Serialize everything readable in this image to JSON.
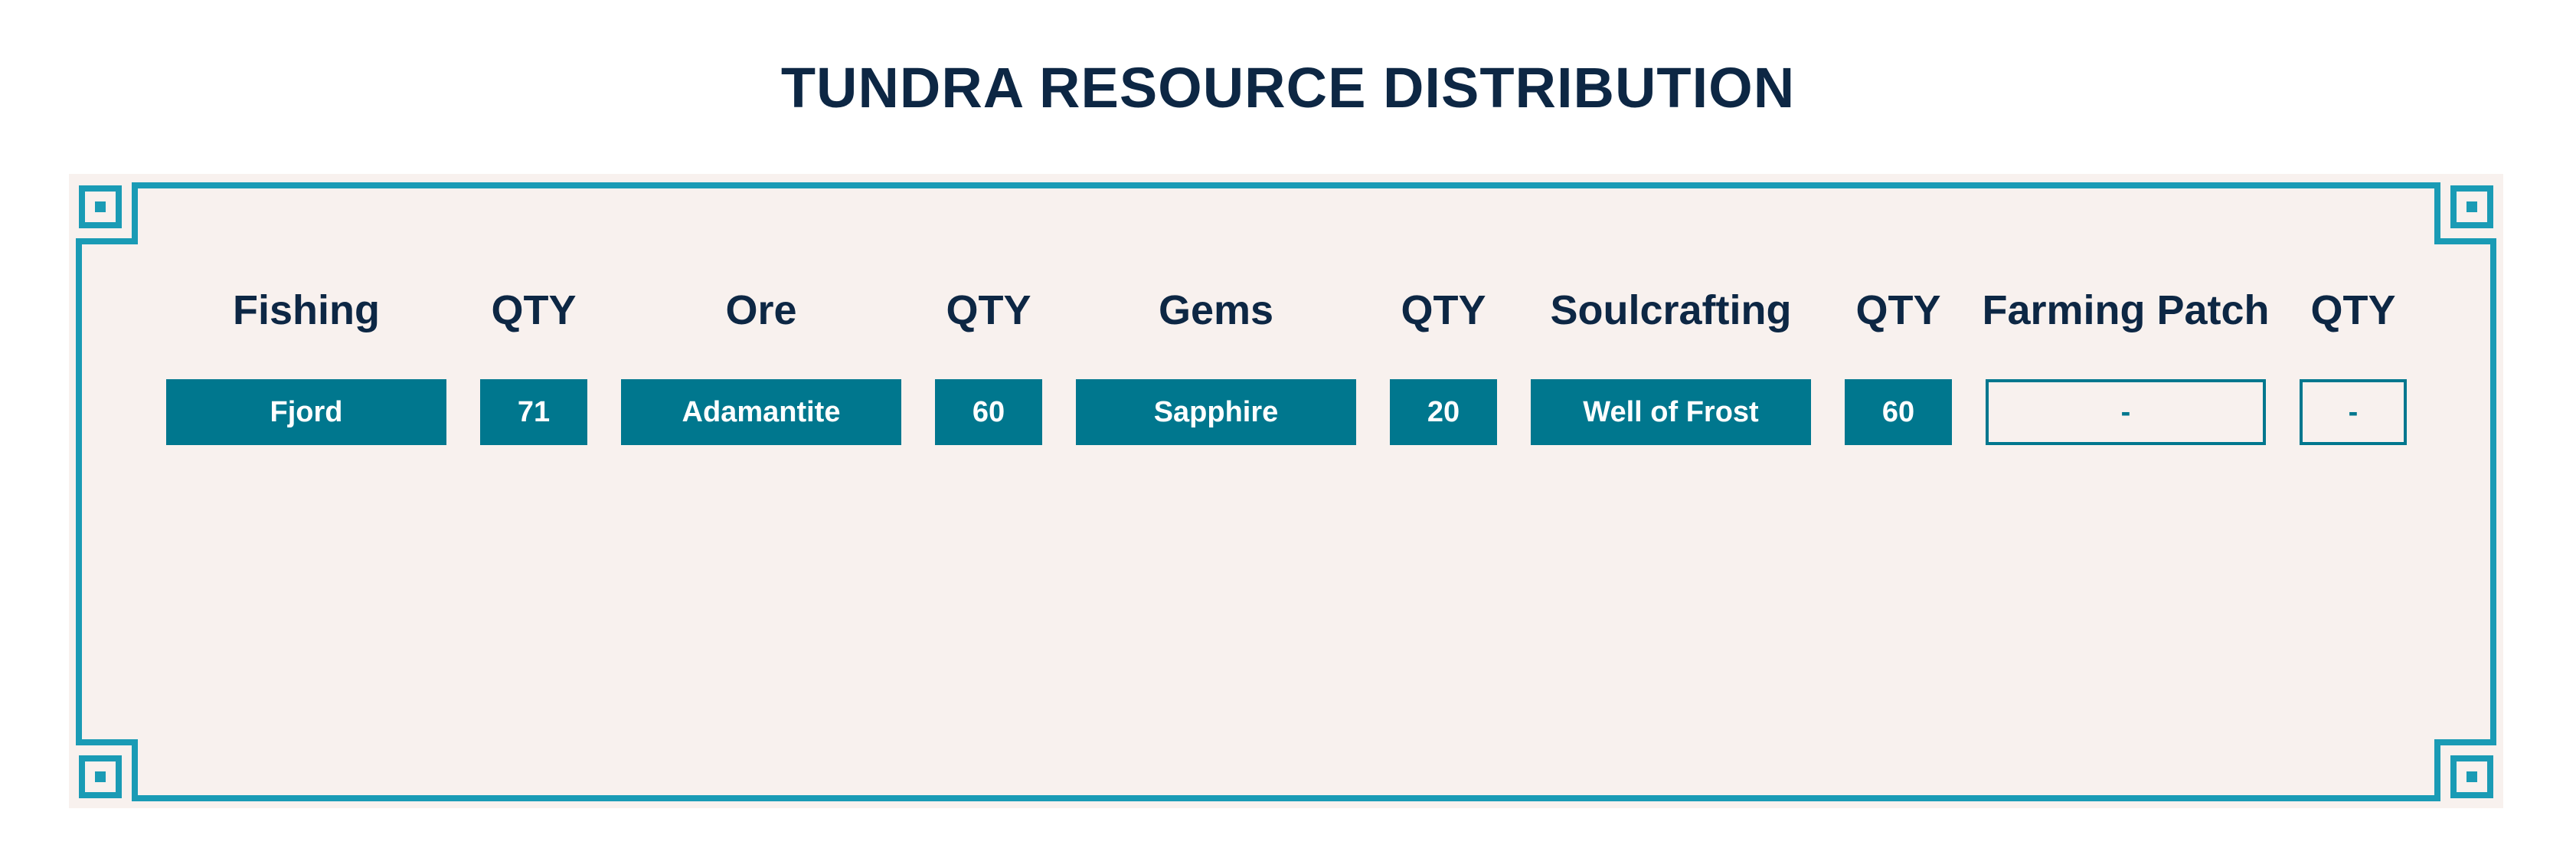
{
  "title": "TUNDRA RESOURCE DISTRIBUTION",
  "table": {
    "headers": [
      "Fishing",
      "QTY",
      "Ore",
      "QTY",
      "Gems",
      "QTY",
      "Soulcrafting",
      "QTY",
      "Farming Patch",
      "QTY"
    ],
    "rows": [
      [
        "Fjord",
        71,
        "Adamantite",
        60,
        "Sapphire",
        20,
        "Well of Frost",
        60,
        "-",
        "-"
      ]
    ]
  }
}
